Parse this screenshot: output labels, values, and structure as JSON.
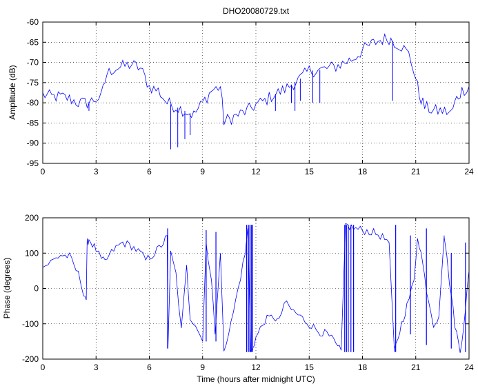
{
  "figure_title": "DHO20080729.txt",
  "colors": {
    "trace": "#0000ff",
    "axes": "#000000",
    "grid": "#000000",
    "background": "#ffffff"
  },
  "chart_data": [
    {
      "type": "line",
      "title": "DHO20080729.txt",
      "xlabel": "",
      "ylabel": "Amplitude (dB)",
      "xlim": [
        0,
        24
      ],
      "ylim": [
        -95,
        -60
      ],
      "xticks": [
        0,
        3,
        6,
        9,
        12,
        15,
        18,
        21,
        24
      ],
      "yticks": [
        -95,
        -90,
        -85,
        -80,
        -75,
        -70,
        -65,
        -60
      ],
      "grid": true,
      "x": [
        0,
        0.5,
        1,
        1.5,
        2,
        2.5,
        3,
        3.3,
        3.6,
        4,
        4.5,
        5,
        5.5,
        6,
        6.5,
        7,
        7.5,
        8,
        8.5,
        9,
        9.5,
        10,
        10.2,
        10.5,
        11,
        11.5,
        12,
        12.5,
        13,
        13.5,
        14,
        14.5,
        15,
        15.5,
        16,
        16.5,
        17,
        17.5,
        18,
        18.5,
        19,
        19.5,
        19.8,
        20.2,
        20.6,
        20.9,
        21.2,
        21.5,
        22,
        22.5,
        23,
        23.3,
        23.6,
        24
      ],
      "y": [
        -78,
        -78.5,
        -78.5,
        -79,
        -80,
        -80,
        -79,
        -78.5,
        -73,
        -71.5,
        -71,
        -70.5,
        -71.5,
        -76,
        -77,
        -80,
        -81,
        -82,
        -83,
        -80,
        -77,
        -76,
        -84.5,
        -84,
        -83,
        -82,
        -80.5,
        -79.5,
        -78,
        -77,
        -75.5,
        -74,
        -72,
        -72,
        -71.5,
        -71,
        -70,
        -69,
        -67,
        -65.5,
        -64.5,
        -64,
        -65,
        -66,
        -68,
        -72,
        -78,
        -81,
        -82,
        -82,
        -82.5,
        -79,
        -77,
        -76
      ],
      "spikes": [
        [
          2.6,
          -82
        ],
        [
          7.2,
          -91.5
        ],
        [
          7.6,
          -91
        ],
        [
          8,
          -89
        ],
        [
          8.3,
          -88
        ],
        [
          10.2,
          -85
        ],
        [
          13.1,
          -82
        ],
        [
          14.0,
          -80
        ],
        [
          14.2,
          -82
        ],
        [
          14.5,
          -79.5
        ],
        [
          15.2,
          -80
        ],
        [
          15.6,
          -80
        ],
        [
          19.7,
          -79.5
        ]
      ]
    },
    {
      "type": "line",
      "title": "",
      "xlabel": "Time (hours after midnight UTC)",
      "ylabel": "Phase (degrees)",
      "xlim": [
        0,
        24
      ],
      "ylim": [
        -200,
        200
      ],
      "xticks": [
        0,
        3,
        6,
        9,
        12,
        15,
        18,
        21,
        24
      ],
      "yticks": [
        -200,
        -100,
        0,
        100,
        200
      ],
      "grid": true,
      "x": [
        0,
        0.3,
        0.6,
        1,
        1.5,
        2,
        2.3,
        2.45,
        2.5,
        2.6,
        2.8,
        3,
        3.3,
        3.5,
        4,
        4.5,
        5,
        5.5,
        5.8,
        6.3,
        6.8,
        7,
        7.05,
        7.2,
        7.5,
        7.8,
        8.1,
        8.3,
        8.6,
        9,
        9.2,
        9.5,
        9.7,
        10,
        10.2,
        10.6,
        11,
        11.4,
        11.55,
        11.7,
        12,
        12.5,
        13,
        13.3,
        13.6,
        14,
        14.5,
        15,
        15.5,
        16,
        16.4,
        16.6,
        16.8,
        17.05,
        17.5,
        18,
        18.5,
        19,
        19.5,
        19.8,
        19.9,
        20.2,
        20.5,
        20.9,
        21.1,
        21.3,
        21.6,
        22,
        22.3,
        22.6,
        22.9,
        23.2,
        23.5,
        23.7,
        24
      ],
      "y": [
        60,
        70,
        80,
        95,
        90,
        40,
        -10,
        -30,
        130,
        140,
        125,
        110,
        80,
        75,
        110,
        130,
        120,
        100,
        80,
        100,
        130,
        150,
        -170,
        100,
        40,
        -120,
        60,
        -80,
        -100,
        -150,
        130,
        20,
        -130,
        100,
        -170,
        -100,
        0,
        100,
        170,
        -180,
        -140,
        -90,
        -80,
        -95,
        -40,
        -60,
        -80,
        -100,
        -120,
        -130,
        -150,
        -170,
        -175,
        180,
        170,
        165,
        160,
        150,
        130,
        -180,
        -160,
        -100,
        -50,
        20,
        150,
        100,
        0,
        -100,
        -80,
        150,
        20,
        -100,
        -180,
        -100,
        50
      ],
      "wraps": [
        [
          7.03,
          -170,
          170
        ],
        [
          9.2,
          -150,
          165
        ],
        [
          9.75,
          -150,
          160
        ],
        [
          11.48,
          -180,
          180
        ],
        [
          11.58,
          -180,
          180
        ],
        [
          11.66,
          -180,
          180
        ],
        [
          11.74,
          -180,
          180
        ],
        [
          11.82,
          -180,
          180
        ],
        [
          17.0,
          -180,
          180
        ],
        [
          17.1,
          -180,
          180
        ],
        [
          17.2,
          -180,
          180
        ],
        [
          17.35,
          -180,
          180
        ],
        [
          17.5,
          -180,
          180
        ],
        [
          19.87,
          -180,
          180
        ],
        [
          20.7,
          -130,
          150
        ],
        [
          21.6,
          -160,
          170
        ],
        [
          23.0,
          -170,
          100
        ],
        [
          23.8,
          -180,
          130
        ]
      ]
    }
  ]
}
